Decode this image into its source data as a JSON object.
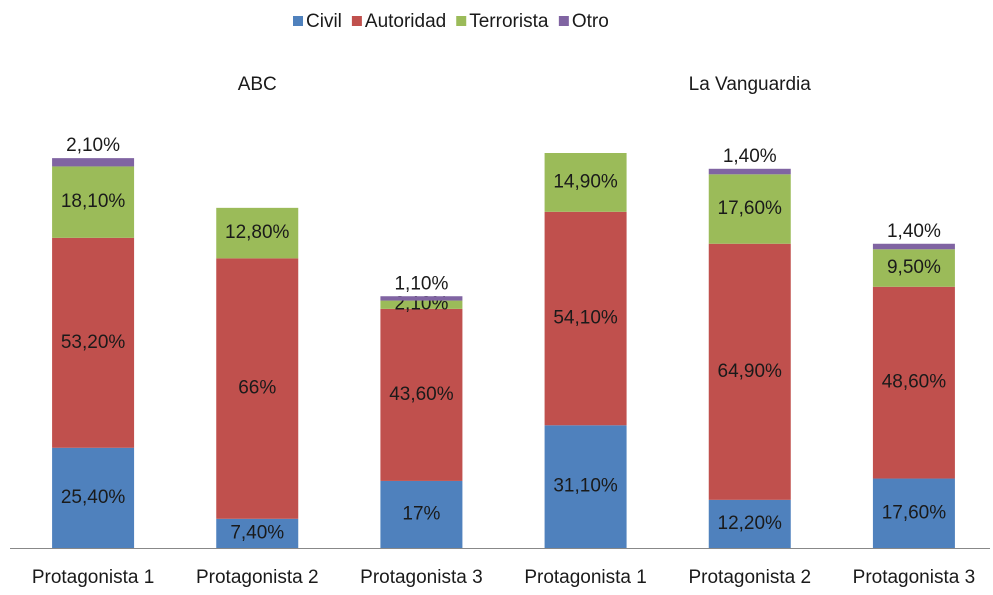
{
  "chart_data": {
    "type": "stacked_bar",
    "groups": [
      "ABC",
      "La Vanguardia"
    ],
    "categories": [
      "Protagonista 1",
      "Protagonista 2",
      "Protagonista 3",
      "Protagonista 1",
      "Protagonista 2",
      "Protagonista 3"
    ],
    "series": [
      {
        "name": "Civil",
        "color": "#4f81bd",
        "values": [
          25.4,
          7.4,
          17,
          31.1,
          12.2,
          17.6
        ],
        "value_labels": [
          "25,40%",
          "7,40%",
          "17%",
          "31,10%",
          "12,20%",
          "17,60%"
        ]
      },
      {
        "name": "Autoridad",
        "color": "#c0504d",
        "values": [
          53.2,
          66,
          43.6,
          54.1,
          64.9,
          48.6
        ],
        "value_labels": [
          "53,20%",
          "66%",
          "43,60%",
          "54,10%",
          "64,90%",
          "48,60%"
        ]
      },
      {
        "name": "Terrorista",
        "color": "#9bbb59",
        "values": [
          18.1,
          12.8,
          2.1,
          14.9,
          17.6,
          9.5
        ],
        "value_labels": [
          "18,10%",
          "12,80%",
          "2,10%",
          "14,90%",
          "17,60%",
          "9,50%"
        ]
      },
      {
        "name": "Otro",
        "color": "#8064a2",
        "values": [
          2.1,
          null,
          1.1,
          null,
          1.4,
          1.4
        ],
        "value_labels": [
          "2,10%",
          null,
          "1,10%",
          null,
          "1,40%",
          "1,40%"
        ]
      }
    ],
    "legend": "top"
  }
}
